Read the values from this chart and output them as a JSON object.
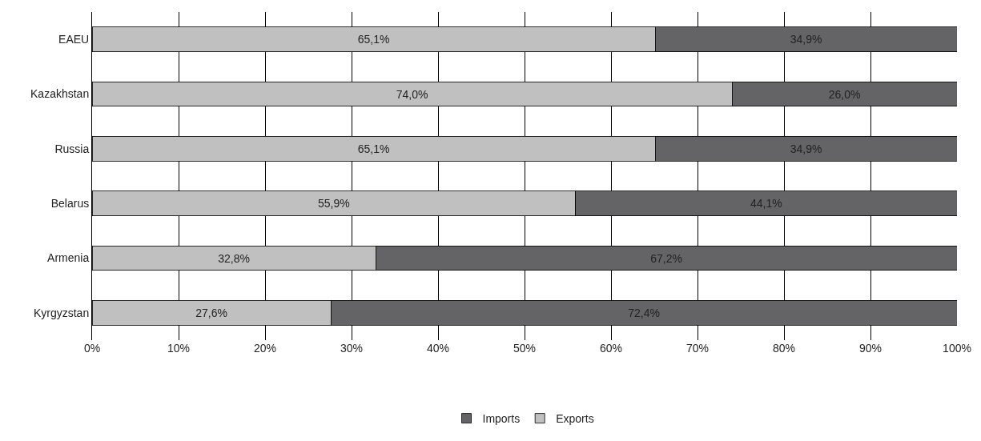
{
  "chart_data": {
    "type": "bar",
    "orientation": "horizontal",
    "stacked": true,
    "categories": [
      "EAEU",
      "Kazakhstan",
      "Russia",
      "Belarus",
      "Armenia",
      "Kyrgyzstan"
    ],
    "series": [
      {
        "name": "Exports",
        "color": "#c0c0c0",
        "values": [
          65.1,
          74.0,
          65.1,
          55.9,
          32.8,
          27.6
        ],
        "value_labels": [
          "65,1%",
          "74,0%",
          "65,1%",
          "55,9%",
          "32,8%",
          "27,6%"
        ]
      },
      {
        "name": "Imports",
        "color": "#646466",
        "values": [
          34.9,
          26.0,
          34.9,
          44.1,
          67.2,
          72.4
        ],
        "value_labels": [
          "34,9%",
          "26,0%",
          "34,9%",
          "44,1%",
          "67,2%",
          "72,4%"
        ]
      }
    ],
    "xlim": [
      0,
      100
    ],
    "xticks": [
      {
        "value": 0,
        "label": "0%"
      },
      {
        "value": 10,
        "label": "10%"
      },
      {
        "value": 20,
        "label": "20%"
      },
      {
        "value": 30,
        "label": "30%"
      },
      {
        "value": 40,
        "label": "40%"
      },
      {
        "value": 50,
        "label": "50%"
      },
      {
        "value": 60,
        "label": "60%"
      },
      {
        "value": 70,
        "label": "70%"
      },
      {
        "value": 80,
        "label": "80%"
      },
      {
        "value": 90,
        "label": "90%"
      },
      {
        "value": 100,
        "label": "100%"
      }
    ],
    "grid": "x",
    "legend": "bottom"
  }
}
